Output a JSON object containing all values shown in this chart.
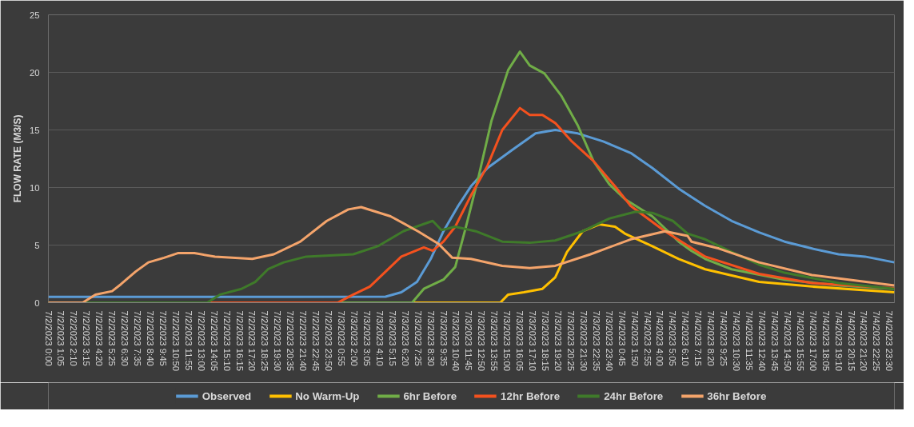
{
  "chart_data": {
    "type": "line",
    "ylabel": "FLOW RATE (M3/S)",
    "ylim": [
      0,
      25
    ],
    "yticks": [
      0,
      5,
      10,
      15,
      20,
      25
    ],
    "xlim": [
      "2023-07-02T00:00",
      "2023-07-04T23:55"
    ],
    "grid": "y",
    "legend": "bottom",
    "xticks": [
      {
        "value": "2023-07-02T00:00",
        "label": "7/2/2023 0:00"
      },
      {
        "value": "2023-07-02T01:05",
        "label": "7/2/2023 1:05"
      },
      {
        "value": "2023-07-02T02:10",
        "label": "7/2/2023 2:10"
      },
      {
        "value": "2023-07-02T03:15",
        "label": "7/2/2023 3:15"
      },
      {
        "value": "2023-07-02T04:20",
        "label": "7/2/2023 4:20"
      },
      {
        "value": "2023-07-02T05:25",
        "label": "7/2/2023 5:25"
      },
      {
        "value": "2023-07-02T06:30",
        "label": "7/2/2023 6:30"
      },
      {
        "value": "2023-07-02T07:35",
        "label": "7/2/2023 7:35"
      },
      {
        "value": "2023-07-02T08:40",
        "label": "7/2/2023 8:40"
      },
      {
        "value": "2023-07-02T09:45",
        "label": "7/2/2023 9:45"
      },
      {
        "value": "2023-07-02T10:50",
        "label": "7/2/2023 10:50"
      },
      {
        "value": "2023-07-02T11:55",
        "label": "7/2/2023 11:55"
      },
      {
        "value": "2023-07-02T13:00",
        "label": "7/2/2023 13:00"
      },
      {
        "value": "2023-07-02T14:05",
        "label": "7/2/2023 14:05"
      },
      {
        "value": "2023-07-02T15:10",
        "label": "7/2/2023 15:10"
      },
      {
        "value": "2023-07-02T16:15",
        "label": "7/2/2023 16:15"
      },
      {
        "value": "2023-07-02T17:20",
        "label": "7/2/2023 17:20"
      },
      {
        "value": "2023-07-02T18:25",
        "label": "7/2/2023 18:25"
      },
      {
        "value": "2023-07-02T19:30",
        "label": "7/2/2023 19:30"
      },
      {
        "value": "2023-07-02T20:35",
        "label": "7/2/2023 20:35"
      },
      {
        "value": "2023-07-02T21:40",
        "label": "7/2/2023 21:40"
      },
      {
        "value": "2023-07-02T22:45",
        "label": "7/2/2023 22:45"
      },
      {
        "value": "2023-07-02T23:50",
        "label": "7/2/2023 23:50"
      },
      {
        "value": "2023-07-03T00:55",
        "label": "7/3/2023 0:55"
      },
      {
        "value": "2023-07-03T02:00",
        "label": "7/3/2023 2:00"
      },
      {
        "value": "2023-07-03T03:05",
        "label": "7/3/2023 3:05"
      },
      {
        "value": "2023-07-03T04:10",
        "label": "7/3/2023 4:10"
      },
      {
        "value": "2023-07-03T05:15",
        "label": "7/3/2023 5:15"
      },
      {
        "value": "2023-07-03T06:20",
        "label": "7/3/2023 6:20"
      },
      {
        "value": "2023-07-03T07:25",
        "label": "7/3/2023 7:25"
      },
      {
        "value": "2023-07-03T08:30",
        "label": "7/3/2023 8:30"
      },
      {
        "value": "2023-07-03T09:35",
        "label": "7/3/2023 9:35"
      },
      {
        "value": "2023-07-03T10:40",
        "label": "7/3/2023 10:40"
      },
      {
        "value": "2023-07-03T11:45",
        "label": "7/3/2023 11:45"
      },
      {
        "value": "2023-07-03T12:50",
        "label": "7/3/2023 12:50"
      },
      {
        "value": "2023-07-03T13:55",
        "label": "7/3/2023 13:55"
      },
      {
        "value": "2023-07-03T15:00",
        "label": "7/3/2023 15:00"
      },
      {
        "value": "2023-07-03T16:05",
        "label": "7/3/2023 16:05"
      },
      {
        "value": "2023-07-03T17:10",
        "label": "7/3/2023 17:10"
      },
      {
        "value": "2023-07-03T18:15",
        "label": "7/3/2023 18:15"
      },
      {
        "value": "2023-07-03T19:20",
        "label": "7/3/2023 19:20"
      },
      {
        "value": "2023-07-03T20:25",
        "label": "7/3/2023 20:25"
      },
      {
        "value": "2023-07-03T21:30",
        "label": "7/3/2023 21:30"
      },
      {
        "value": "2023-07-03T22:35",
        "label": "7/3/2023 22:35"
      },
      {
        "value": "2023-07-03T23:40",
        "label": "7/3/2023 23:40"
      },
      {
        "value": "2023-07-04T00:45",
        "label": "7/4/2023 0:45"
      },
      {
        "value": "2023-07-04T01:50",
        "label": "7/4/2023 1:50"
      },
      {
        "value": "2023-07-04T02:55",
        "label": "7/4/2023 2:55"
      },
      {
        "value": "2023-07-04T04:00",
        "label": "7/4/2023 4:00"
      },
      {
        "value": "2023-07-04T05:05",
        "label": "7/4/2023 5:05"
      },
      {
        "value": "2023-07-04T06:10",
        "label": "7/4/2023 6:10"
      },
      {
        "value": "2023-07-04T07:15",
        "label": "7/4/2023 7:15"
      },
      {
        "value": "2023-07-04T08:20",
        "label": "7/4/2023 8:20"
      },
      {
        "value": "2023-07-04T09:25",
        "label": "7/4/2023 9:25"
      },
      {
        "value": "2023-07-04T10:30",
        "label": "7/4/2023 10:30"
      },
      {
        "value": "2023-07-04T11:35",
        "label": "7/4/2023 11:35"
      },
      {
        "value": "2023-07-04T12:40",
        "label": "7/4/2023 12:40"
      },
      {
        "value": "2023-07-04T13:45",
        "label": "7/4/2023 13:45"
      },
      {
        "value": "2023-07-04T14:50",
        "label": "7/4/2023 14:50"
      },
      {
        "value": "2023-07-04T15:55",
        "label": "7/4/2023 15:55"
      },
      {
        "value": "2023-07-04T17:00",
        "label": "7/4/2023 17:00"
      },
      {
        "value": "2023-07-04T18:05",
        "label": "7/4/2023 18:05"
      },
      {
        "value": "2023-07-04T19:10",
        "label": "7/4/2023 19:10"
      },
      {
        "value": "2023-07-04T20:15",
        "label": "7/4/2023 20:15"
      },
      {
        "value": "2023-07-04T21:20",
        "label": "7/4/2023 21:20"
      },
      {
        "value": "2023-07-04T22:25",
        "label": "7/4/2023 22:25"
      },
      {
        "value": "2023-07-04T23:30",
        "label": "7/4/2023 23:30"
      }
    ],
    "series": [
      {
        "name": "Observed",
        "color": "#5b9bd5",
        "x": [
          "2023-07-02T00:00",
          "2023-07-02T20:00",
          "2023-07-03T04:40",
          "2023-07-03T06:00",
          "2023-07-03T07:20",
          "2023-07-03T08:30",
          "2023-07-03T09:35",
          "2023-07-03T10:50",
          "2023-07-03T11:55",
          "2023-07-03T13:20",
          "2023-07-03T15:20",
          "2023-07-03T17:25",
          "2023-07-03T19:05",
          "2023-07-03T21:00",
          "2023-07-03T23:10",
          "2023-07-04T01:30",
          "2023-07-04T03:20",
          "2023-07-04T05:35",
          "2023-07-04T07:50",
          "2023-07-04T10:05",
          "2023-07-04T12:25",
          "2023-07-04T14:35",
          "2023-07-04T16:55",
          "2023-07-04T19:10",
          "2023-07-04T21:25",
          "2023-07-04T23:55"
        ],
        "values": [
          0.5,
          0.5,
          0.52,
          0.9,
          1.8,
          3.8,
          6.2,
          8.4,
          10.1,
          11.7,
          13.2,
          14.7,
          15.0,
          14.7,
          14.0,
          13.0,
          11.7,
          9.9,
          8.4,
          7.1,
          6.1,
          5.3,
          4.7,
          4.2,
          4.0,
          3.5
        ]
      },
      {
        "name": "No Warm-Up",
        "color": "#ffc000",
        "x": [
          "2023-07-02T00:00",
          "2023-07-03T14:25",
          "2023-07-03T15:05",
          "2023-07-03T16:25",
          "2023-07-03T18:00",
          "2023-07-03T19:05",
          "2023-07-03T20:05",
          "2023-07-03T21:25",
          "2023-07-03T22:50",
          "2023-07-04T00:10",
          "2023-07-04T01:00",
          "2023-07-04T03:20",
          "2023-07-04T05:35",
          "2023-07-04T07:50",
          "2023-07-04T12:25",
          "2023-07-04T16:55",
          "2023-07-04T23:55"
        ],
        "values": [
          0,
          0,
          0.7,
          0.9,
          1.2,
          2.2,
          4.4,
          6.2,
          6.8,
          6.6,
          6.0,
          4.9,
          3.8,
          2.9,
          1.8,
          1.4,
          0.9
        ]
      },
      {
        "name": "6hr Before",
        "color": "#70ad47",
        "x": [
          "2023-07-02T00:00",
          "2023-07-03T06:55",
          "2023-07-03T07:55",
          "2023-07-03T09:35",
          "2023-07-03T10:35",
          "2023-07-03T11:30",
          "2023-07-03T12:35",
          "2023-07-03T13:40",
          "2023-07-03T15:05",
          "2023-07-03T16:05",
          "2023-07-03T16:55",
          "2023-07-03T18:10",
          "2023-07-03T19:35",
          "2023-07-03T21:00",
          "2023-07-03T22:20",
          "2023-07-03T23:40",
          "2023-07-04T01:00",
          "2023-07-04T03:20",
          "2023-07-04T05:35",
          "2023-07-04T06:40",
          "2023-07-04T07:50",
          "2023-07-04T10:05",
          "2023-07-04T14:35",
          "2023-07-04T19:10",
          "2023-07-04T23:55"
        ],
        "values": [
          0,
          0,
          1.2,
          2.0,
          3.1,
          6.6,
          11.0,
          15.8,
          20.2,
          21.8,
          20.6,
          19.9,
          18.0,
          15.4,
          12.3,
          10.3,
          9.0,
          7.5,
          5.3,
          4.5,
          3.8,
          2.9,
          2.0,
          1.5,
          1.2
        ]
      },
      {
        "name": "12hr Before",
        "color": "#f4511e",
        "x": [
          "2023-07-02T00:00",
          "2023-07-03T00:35",
          "2023-07-03T01:55",
          "2023-07-03T03:20",
          "2023-07-03T04:40",
          "2023-07-03T06:00",
          "2023-07-03T07:55",
          "2023-07-03T08:40",
          "2023-07-03T09:35",
          "2023-07-03T10:35",
          "2023-07-03T11:55",
          "2023-07-03T13:20",
          "2023-07-03T14:35",
          "2023-07-03T16:05",
          "2023-07-03T16:55",
          "2023-07-03T18:00",
          "2023-07-03T19:05",
          "2023-07-03T20:30",
          "2023-07-03T22:20",
          "2023-07-04T00:10",
          "2023-07-04T01:30",
          "2023-07-04T04:25",
          "2023-07-04T07:50",
          "2023-07-04T12:25",
          "2023-07-04T16:55",
          "2023-07-04T23:55"
        ],
        "values": [
          0,
          0,
          0.7,
          1.4,
          2.7,
          4.0,
          4.8,
          4.5,
          5.3,
          6.6,
          9.3,
          11.9,
          15.0,
          16.9,
          16.3,
          16.3,
          15.6,
          14.0,
          12.3,
          10.1,
          8.4,
          6.2,
          4.0,
          2.5,
          1.7,
          1.25
        ]
      },
      {
        "name": "24hr Before",
        "color": "#3f7a2a",
        "x": [
          "2023-07-02T00:00",
          "2023-07-02T13:30",
          "2023-07-02T14:35",
          "2023-07-02T16:25",
          "2023-07-02T17:35",
          "2023-07-02T18:40",
          "2023-07-02T20:00",
          "2023-07-02T21:55",
          "2023-07-03T01:55",
          "2023-07-03T04:00",
          "2023-07-03T06:10",
          "2023-07-03T08:40",
          "2023-07-03T09:25",
          "2023-07-03T10:35",
          "2023-07-03T12:20",
          "2023-07-03T14:35",
          "2023-07-03T16:55",
          "2023-07-03T19:05",
          "2023-07-03T21:25",
          "2023-07-03T23:40",
          "2023-07-04T01:55",
          "2023-07-04T03:20",
          "2023-07-04T05:05",
          "2023-07-04T06:20",
          "2023-07-04T07:50",
          "2023-07-04T10:05",
          "2023-07-04T12:25",
          "2023-07-04T14:35",
          "2023-07-04T19:10",
          "2023-07-04T23:55"
        ],
        "values": [
          0,
          0,
          0.7,
          1.2,
          1.8,
          2.9,
          3.5,
          4.0,
          4.2,
          4.9,
          6.2,
          7.1,
          6.3,
          6.6,
          6.2,
          5.3,
          5.2,
          5.4,
          6.2,
          7.3,
          7.9,
          7.8,
          7.1,
          6.0,
          5.5,
          4.4,
          3.3,
          2.6,
          1.7,
          1.2
        ]
      },
      {
        "name": "36hr Before",
        "color": "#f4a46b",
        "x": [
          "2023-07-02T00:00",
          "2023-07-02T02:55",
          "2023-07-02T04:00",
          "2023-07-02T05:25",
          "2023-07-02T06:10",
          "2023-07-02T07:25",
          "2023-07-02T08:30",
          "2023-07-02T09:50",
          "2023-07-02T11:00",
          "2023-07-02T12:25",
          "2023-07-02T14:10",
          "2023-07-02T17:20",
          "2023-07-02T19:10",
          "2023-07-02T21:25",
          "2023-07-02T23:40",
          "2023-07-03T01:30",
          "2023-07-03T02:35",
          "2023-07-03T05:05",
          "2023-07-03T07:25",
          "2023-07-03T09:10",
          "2023-07-03T10:20",
          "2023-07-03T11:55",
          "2023-07-03T14:35",
          "2023-07-03T16:55",
          "2023-07-03T19:05",
          "2023-07-03T22:05",
          "2023-07-04T01:30",
          "2023-07-04T04:25",
          "2023-07-04T06:20",
          "2023-07-04T06:40",
          "2023-07-04T09:00",
          "2023-07-04T12:25",
          "2023-07-04T16:55",
          "2023-07-04T23:55"
        ],
        "values": [
          0,
          0,
          0.7,
          1.0,
          1.6,
          2.7,
          3.5,
          3.9,
          4.3,
          4.3,
          4.0,
          3.8,
          4.2,
          5.3,
          7.1,
          8.1,
          8.3,
          7.5,
          6.2,
          5.1,
          3.9,
          3.8,
          3.2,
          3.0,
          3.2,
          4.2,
          5.5,
          6.2,
          5.8,
          5.3,
          4.7,
          3.5,
          2.4,
          1.5
        ]
      }
    ]
  }
}
